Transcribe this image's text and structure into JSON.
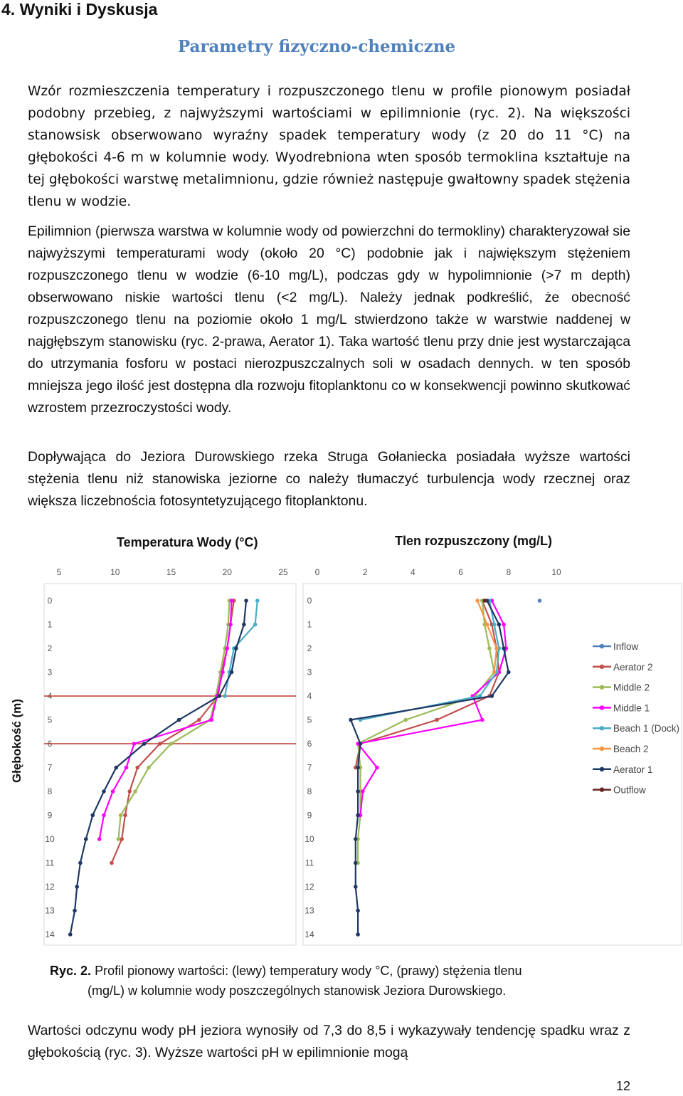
{
  "heading": "4. Wyniki i Dyskusja",
  "subheading": "Parametry fizyczno-chemiczne",
  "paragraphs": [
    "Wzór rozmieszczenia temperatury i rozpuszczonego tlenu w profile pionowym posiadał podobny przebieg, z najwyższymi wartościami w epilimnionie (ryc. 2). Na większości stanowsisk obserwowano wyraźny spadek temperatury wody (z 20 do 11 °C) na głębokości 4-6 m w kolumnie wody. Wyodrebniona wten sposób termoklina kształtuje na tej głębokości warstwę metalimnionu, gdzie również następuje gwałtowny spadek stężenia tlenu w wodzie.",
    "Epilimnion (pierwsza warstwa w kolumnie wody od powierzchni do termokliny) charakteryzował sie najwyższymi temperaturami wody (około 20 °C) podobnie jak i największym stężeniem rozpuszczonego tlenu w wodzie (6-10 mg/L), podczas gdy w hypolimnionie (>7 m depth) obserwowano niskie wartości tlenu (<2 mg/L). Należy jednak podkreślić, że obecność rozpuszczonego tlenu na poziomie około 1 mg/L stwierdzono także w warstwie naddenej w najgłębszym stanowisku (ryc. 2-prawa, Aerator 1). Taka wartość tlenu przy dnie jest wystarczająca do utrzymania fosforu w postaci nierozpuszczalnych soli w osadach dennych. w ten sposób mniejsza jego ilość jest dostępna dla rozwoju fitoplanktonu co w konsekwencji powinno skutkować wzrostem przezroczystości wody.",
    "Dopływająca do Jeziora Durowskiego rzeka Struga Gołaniecka posiadała wyższe wartości stężenia tlenu niż stanowiska jeziorne co należy tłumaczyć turbulencja wody rzecznej oraz większa liczebnościa fotosyntetyzującego fitoplanktonu."
  ],
  "figure": {
    "y_axis_title": "Głębokość (m)",
    "caption_label": "Ryc. 2.",
    "caption_line1": "Profil pionowy wartości: (lewy) temperatury wody °C, (prawy) stężenia tlenu",
    "caption_line2": "(mg/L) w kolumnie wody poszczególnych stanowisk Jeziora Durowskiego."
  },
  "chart_data": [
    {
      "type": "line",
      "title": "Temperatura Wody (°C)",
      "xlabel": "",
      "ylabel": "Głębokość (m)",
      "xlim": [
        5,
        25
      ],
      "ylim": [
        14,
        0
      ],
      "x_ticks": [
        5,
        10,
        15,
        20,
        25
      ],
      "y_ticks": [
        0,
        1,
        2,
        3,
        4,
        5,
        6,
        7,
        8,
        9,
        10,
        11,
        12,
        13,
        14
      ],
      "reference_lines_depth": [
        4,
        6
      ],
      "reference_line_color": "#c0392b",
      "grid": false,
      "series": [
        {
          "name": "Inflow",
          "color": "#4f81bd",
          "points": []
        },
        {
          "name": "Aerator 2",
          "color": "#c0504d",
          "points": [
            [
              20.6,
              0
            ],
            [
              20.3,
              1
            ],
            [
              20.0,
              2
            ],
            [
              19.5,
              3
            ],
            [
              19.2,
              4
            ],
            [
              17.5,
              5
            ],
            [
              14.0,
              6
            ],
            [
              12.0,
              7
            ],
            [
              11.3,
              8
            ],
            [
              10.9,
              9
            ],
            [
              10.6,
              10
            ],
            [
              9.7,
              11
            ]
          ]
        },
        {
          "name": "Middle 2",
          "color": "#9bbb59",
          "points": [
            [
              20.2,
              0
            ],
            [
              20.1,
              1
            ],
            [
              19.8,
              2
            ],
            [
              19.4,
              3
            ],
            [
              19.0,
              4
            ],
            [
              18.5,
              5
            ],
            [
              15.0,
              6
            ],
            [
              13.0,
              7
            ],
            [
              11.8,
              8
            ],
            [
              10.5,
              9
            ],
            [
              10.3,
              10
            ]
          ]
        },
        {
          "name": "Middle 1",
          "color": "#ff00ff",
          "points": [
            [
              20.4,
              0
            ],
            [
              20.3,
              1
            ],
            [
              20.0,
              2
            ],
            [
              19.6,
              3
            ],
            [
              19.1,
              4
            ],
            [
              18.6,
              5
            ],
            [
              11.7,
              6
            ],
            [
              11.0,
              7
            ],
            [
              9.8,
              8
            ],
            [
              9.0,
              9
            ],
            [
              8.6,
              10
            ]
          ]
        },
        {
          "name": "Beach 1 (Dock)",
          "color": "#4bacc6",
          "points": [
            [
              22.7,
              0
            ],
            [
              22.5,
              1
            ],
            [
              20.6,
              2
            ],
            [
              20.2,
              3
            ],
            [
              19.8,
              4
            ]
          ]
        },
        {
          "name": "Beach 2",
          "color": "#f79646",
          "points": []
        },
        {
          "name": "Aerator 1",
          "color": "#1f3864",
          "points": [
            [
              21.7,
              0
            ],
            [
              21.5,
              1
            ],
            [
              20.8,
              2
            ],
            [
              20.4,
              3
            ],
            [
              19.3,
              4
            ],
            [
              15.7,
              5
            ],
            [
              12.6,
              6
            ],
            [
              10.1,
              7
            ],
            [
              9.0,
              8
            ],
            [
              8.0,
              9
            ],
            [
              7.4,
              10
            ],
            [
              6.9,
              11
            ],
            [
              6.6,
              12
            ],
            [
              6.4,
              13
            ],
            [
              6.0,
              14
            ]
          ]
        },
        {
          "name": "Outflow",
          "color": "#632523",
          "points": []
        }
      ]
    },
    {
      "type": "line",
      "title": "Tlen rozpuszczony (mg/L)",
      "xlabel": "",
      "ylabel": "Głębokość (m)",
      "xlim": [
        0,
        10
      ],
      "ylim": [
        14,
        0
      ],
      "x_ticks": [
        0,
        2,
        4,
        6,
        8,
        10
      ],
      "y_ticks": [
        0,
        1,
        2,
        3,
        4,
        5,
        6,
        7,
        8,
        9,
        10,
        11,
        12,
        13,
        14
      ],
      "grid": false,
      "legend_position": "right",
      "series": [
        {
          "name": "Inflow",
          "color": "#4f81bd",
          "points": [
            [
              9.3,
              0
            ]
          ]
        },
        {
          "name": "Aerator 2",
          "color": "#c0504d",
          "points": [
            [
              6.9,
              0
            ],
            [
              7.3,
              1
            ],
            [
              7.5,
              2
            ],
            [
              7.6,
              3
            ],
            [
              7.2,
              4
            ],
            [
              5.0,
              5
            ],
            [
              1.8,
              6
            ],
            [
              1.6,
              7
            ]
          ]
        },
        {
          "name": "Middle 2",
          "color": "#9bbb59",
          "points": [
            [
              6.9,
              0
            ],
            [
              7.0,
              1
            ],
            [
              7.2,
              2
            ],
            [
              7.4,
              3
            ],
            [
              6.6,
              4
            ],
            [
              3.7,
              5
            ],
            [
              1.7,
              6
            ],
            [
              1.8,
              7
            ],
            [
              1.8,
              8
            ],
            [
              1.8,
              9
            ],
            [
              1.7,
              10
            ],
            [
              1.7,
              11
            ]
          ]
        },
        {
          "name": "Middle 1",
          "color": "#ff00ff",
          "points": [
            [
              7.3,
              0
            ],
            [
              7.8,
              1
            ],
            [
              7.9,
              2
            ],
            [
              7.6,
              3
            ],
            [
              6.5,
              4
            ],
            [
              6.9,
              5
            ],
            [
              1.7,
              6
            ],
            [
              2.5,
              7
            ],
            [
              1.9,
              8
            ],
            [
              1.8,
              9
            ]
          ]
        },
        {
          "name": "Beach 1 (Dock)",
          "color": "#4bacc6",
          "points": [
            [
              7.2,
              0
            ],
            [
              7.4,
              1
            ],
            [
              7.6,
              2
            ],
            [
              7.5,
              3
            ],
            [
              6.8,
              4
            ],
            [
              1.8,
              5
            ]
          ]
        },
        {
          "name": "Beach 2",
          "color": "#f79646",
          "points": [
            [
              6.7,
              0
            ],
            [
              7.1,
              1
            ],
            [
              7.5,
              2
            ],
            [
              7.4,
              3
            ]
          ]
        },
        {
          "name": "Aerator 1",
          "color": "#1f3864",
          "points": [
            [
              7.1,
              0
            ],
            [
              7.6,
              1
            ],
            [
              7.8,
              2
            ],
            [
              8.0,
              3
            ],
            [
              7.3,
              4
            ],
            [
              1.4,
              5
            ],
            [
              1.8,
              6
            ],
            [
              1.7,
              7
            ],
            [
              1.7,
              8
            ],
            [
              1.7,
              9
            ],
            [
              1.6,
              10
            ],
            [
              1.6,
              11
            ],
            [
              1.6,
              12
            ],
            [
              1.7,
              13
            ],
            [
              1.7,
              14
            ]
          ]
        },
        {
          "name": "Outflow",
          "color": "#632523",
          "points": [
            [
              7.0,
              0
            ]
          ]
        }
      ]
    }
  ],
  "page_number": "12",
  "continuation": "Wartości odczynu wody pH jeziora wynosiły od 7,3 do 8,5 i wykazywały tendencję spadku wraz z głębokością (ryc. 3). Wyższe wartości pH w epilimnionie mogą"
}
